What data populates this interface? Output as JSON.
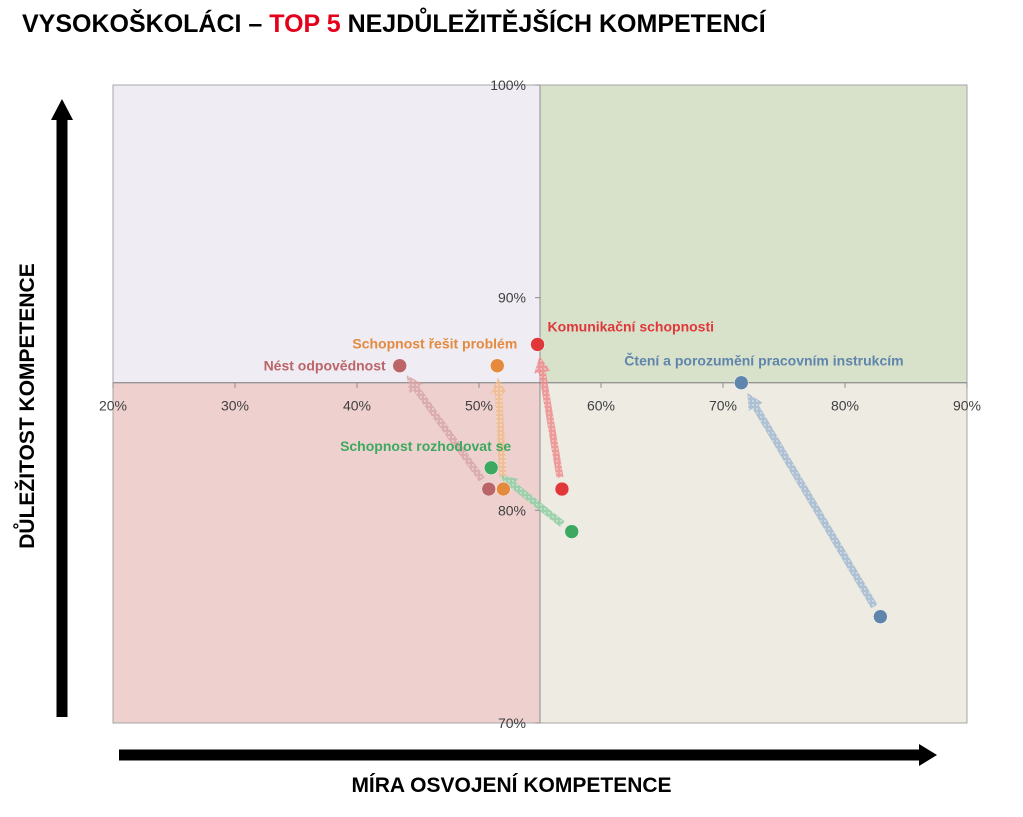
{
  "title": {
    "prefix": "VYSOKOŠKOLÁCI –",
    "highlight": "TOP 5",
    "suffix": "NEJDŮLEŽITĚJŠÍCH KOMPETENCÍ"
  },
  "axes": {
    "y_label": "DŮLEŽITOST KOMPETENCE",
    "x_label": "MÍRA OSVOJENÍ KOMPETENCE"
  },
  "chart_data": {
    "type": "scatter",
    "title": "VYSOKOŠKOLÁCI – TOP 5 NEJDŮLEŽITĚJŠÍCH KOMPETENCÍ",
    "xlabel": "MÍRA OSVOJENÍ KOMPETENCE",
    "ylabel": "DŮLEŽITOST KOMPETENCE",
    "xlim": [
      20,
      90
    ],
    "ylim": [
      70,
      100
    ],
    "x_unit": "%",
    "y_unit": "%",
    "x_ticks": [
      "20%",
      "30%",
      "40%",
      "50%",
      "60%",
      "70%",
      "80%",
      "90%"
    ],
    "y_ticks": [
      "70%",
      "80%",
      "90%",
      "100%"
    ],
    "x_crosses_at": 86,
    "y_crosses_at": 55,
    "quadrants": [
      {
        "x": [
          20,
          55
        ],
        "y": [
          86,
          100
        ],
        "color": "#efecf3"
      },
      {
        "x": [
          55,
          90
        ],
        "y": [
          86,
          100
        ],
        "color": "#d8e1ca"
      },
      {
        "x": [
          20,
          55
        ],
        "y": [
          70,
          86
        ],
        "color": "#eed1cf"
      },
      {
        "x": [
          55,
          90
        ],
        "y": [
          70,
          86
        ],
        "color": "#eeebe3"
      }
    ],
    "grid": false,
    "series": [
      {
        "name": "Komunikační schopnosti",
        "color": "#e0383a",
        "from": [
          56.8,
          81.0
        ],
        "to": [
          54.8,
          87.8
        ],
        "label_pos": "right"
      },
      {
        "name": "Schopnost řešit problém",
        "color": "#e48a3f",
        "from": [
          52.0,
          81.0
        ],
        "to": [
          51.5,
          86.8
        ],
        "label_pos": "left-up"
      },
      {
        "name": "Nést odpovědnost",
        "color": "#bb6569",
        "from": [
          50.8,
          81.0
        ],
        "to": [
          43.5,
          86.8
        ],
        "label_pos": "left"
      },
      {
        "name": "Schopnost rozhodovat se",
        "color": "#3da960",
        "from": [
          57.6,
          79.0
        ],
        "to": [
          51.0,
          82.0
        ],
        "label_pos": "left-up"
      },
      {
        "name": "Čtení a porozumění pracovním instrukcím",
        "color": "#5f85ad",
        "from": [
          82.9,
          75.0
        ],
        "to": [
          71.5,
          86.0
        ],
        "label_pos": "right-up"
      }
    ]
  }
}
